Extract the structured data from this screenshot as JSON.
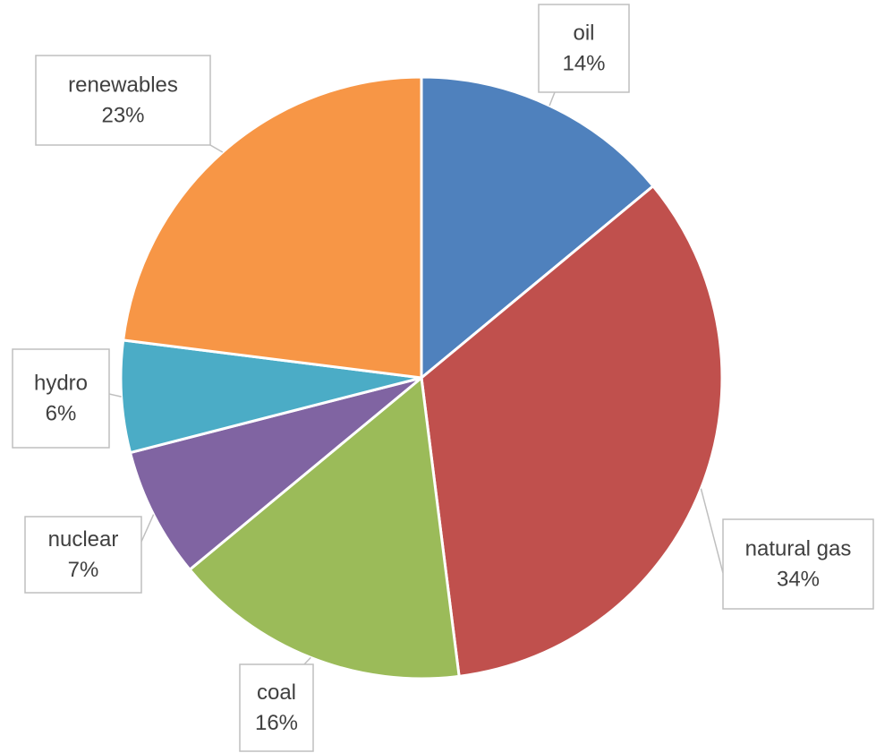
{
  "chart_data": {
    "type": "pie",
    "categories": [
      "oil",
      "natural gas",
      "coal",
      "nuclear",
      "hydro",
      "renewables"
    ],
    "values": [
      14,
      34,
      16,
      7,
      6,
      23
    ],
    "value_labels": [
      "14%",
      "34%",
      "16%",
      "7%",
      "6%",
      "23%"
    ],
    "colors": [
      "#4f81bd",
      "#c0504d",
      "#9bbb59",
      "#8064a2",
      "#4bacc6",
      "#f79646"
    ]
  }
}
